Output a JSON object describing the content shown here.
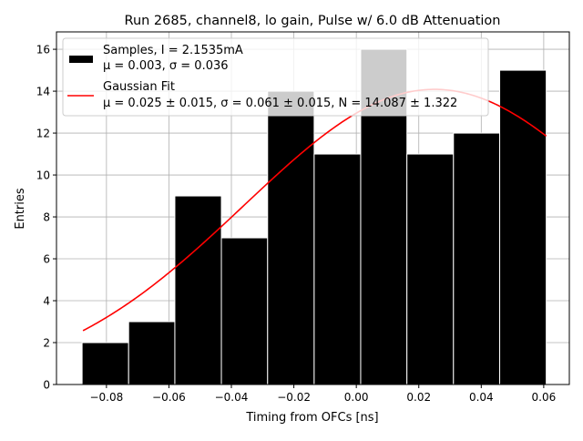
{
  "chart_data": {
    "type": "bar",
    "title": "Run 2685, channel8, lo gain, Pulse w/ 6.0 dB Attenuation",
    "xlabel": "Timing from OFCs [ns]",
    "ylabel": "Entries",
    "xlim": [
      -0.096,
      0.0682
    ],
    "ylim": [
      0,
      16.83
    ],
    "grid": true,
    "xticks": [
      -0.08,
      -0.06,
      -0.04,
      -0.02,
      0.0,
      0.02,
      0.04,
      0.06
    ],
    "xtick_labels": [
      "−0.08",
      "−0.06",
      "−0.04",
      "−0.02",
      "0.00",
      "0.02",
      "0.04",
      "0.06"
    ],
    "yticks": [
      0,
      2,
      4,
      6,
      8,
      10,
      12,
      14,
      16
    ],
    "yticklabels": [
      "0",
      "2",
      "4",
      "6",
      "8",
      "10",
      "12",
      "14",
      "16"
    ],
    "bin_edges": [
      -0.0878,
      -0.0729,
      -0.0581,
      -0.0432,
      -0.0284,
      -0.0135,
      0.0014,
      0.0162,
      0.0311,
      0.0459,
      0.0608
    ],
    "values": [
      2,
      3,
      9,
      7,
      14,
      11,
      16,
      11,
      12,
      15
    ],
    "bar_color": "#000000",
    "fit": {
      "type": "gaussian",
      "mu": 0.025,
      "sigma": 0.061,
      "N": 14.087,
      "x_range": [
        -0.0875,
        0.0608
      ],
      "color": "#ff0000"
    },
    "legend": {
      "placement": "upper-left",
      "entries": [
        {
          "line1": "Samples, I = 2.1535mA",
          "line2": "μ = 0.003, σ = 0.036"
        },
        {
          "line1": "Gaussian Fit",
          "line2": "μ = 0.025 ± 0.015, σ = 0.061 ± 0.015, N = 14.087 ± 1.322"
        }
      ]
    }
  }
}
